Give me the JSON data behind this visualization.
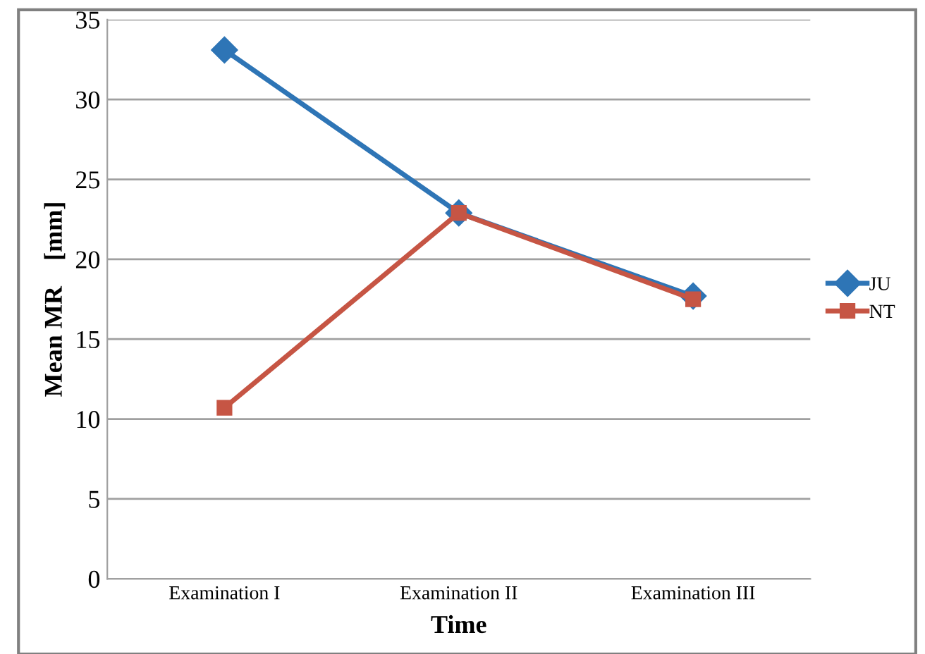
{
  "chart_data": {
    "type": "line",
    "xlabel": "Time",
    "ylabel": "Mean MR    [mm]",
    "categories": [
      "Examination I",
      "Examination II",
      "Examination III"
    ],
    "series": [
      {
        "name": "JU",
        "color": "#2e75b6",
        "marker": "diamond",
        "values": [
          33.1,
          22.9,
          17.7
        ]
      },
      {
        "name": "NT",
        "color": "#c65544",
        "marker": "square",
        "values": [
          10.7,
          22.9,
          17.5
        ]
      }
    ],
    "ylim": [
      0,
      35
    ],
    "yticks": [
      0,
      5,
      10,
      15,
      20,
      25,
      30,
      35
    ],
    "grid": "y",
    "legend": "right",
    "line_style": "solid"
  }
}
